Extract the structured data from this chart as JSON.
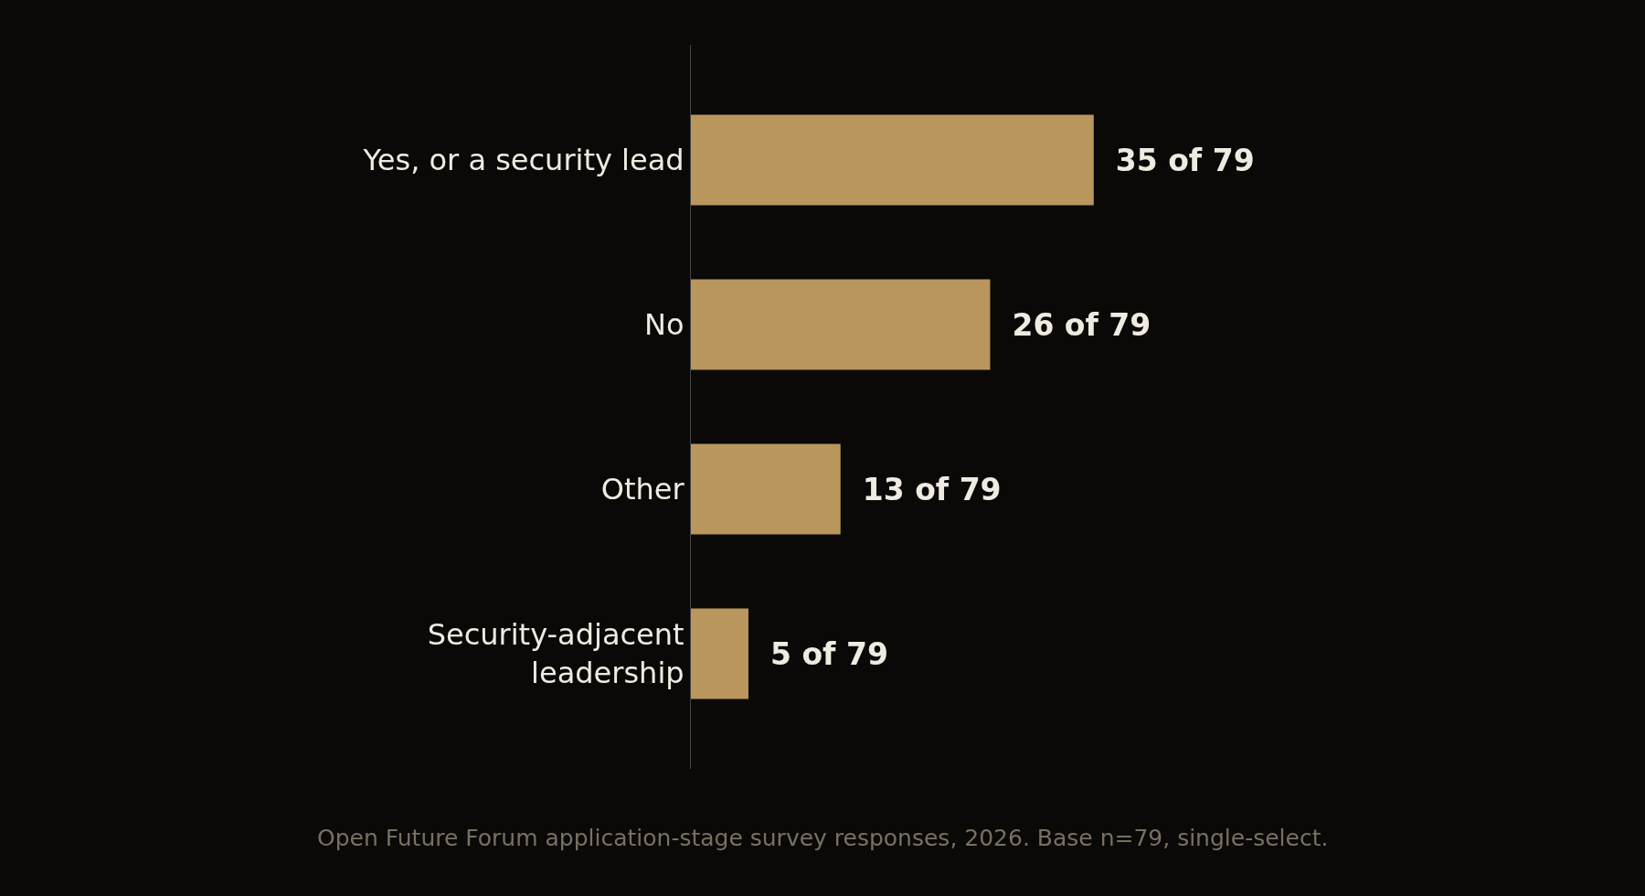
{
  "chart_data": {
    "type": "bar",
    "orientation": "horizontal",
    "categories": [
      "Yes, or a security lead",
      "No",
      "Other",
      "Security-adjacent leadership"
    ],
    "values": [
      35,
      26,
      13,
      5
    ],
    "value_labels": [
      "35 of 79",
      "26 of 79",
      "13 of 79",
      "5 of 79"
    ],
    "color": "#b8965c",
    "tick_labels": "y",
    "legend": false,
    "annotations": [
      "Open Future Forum application-stage survey responses, 2026. Base n=79, single-select."
    ]
  }
}
